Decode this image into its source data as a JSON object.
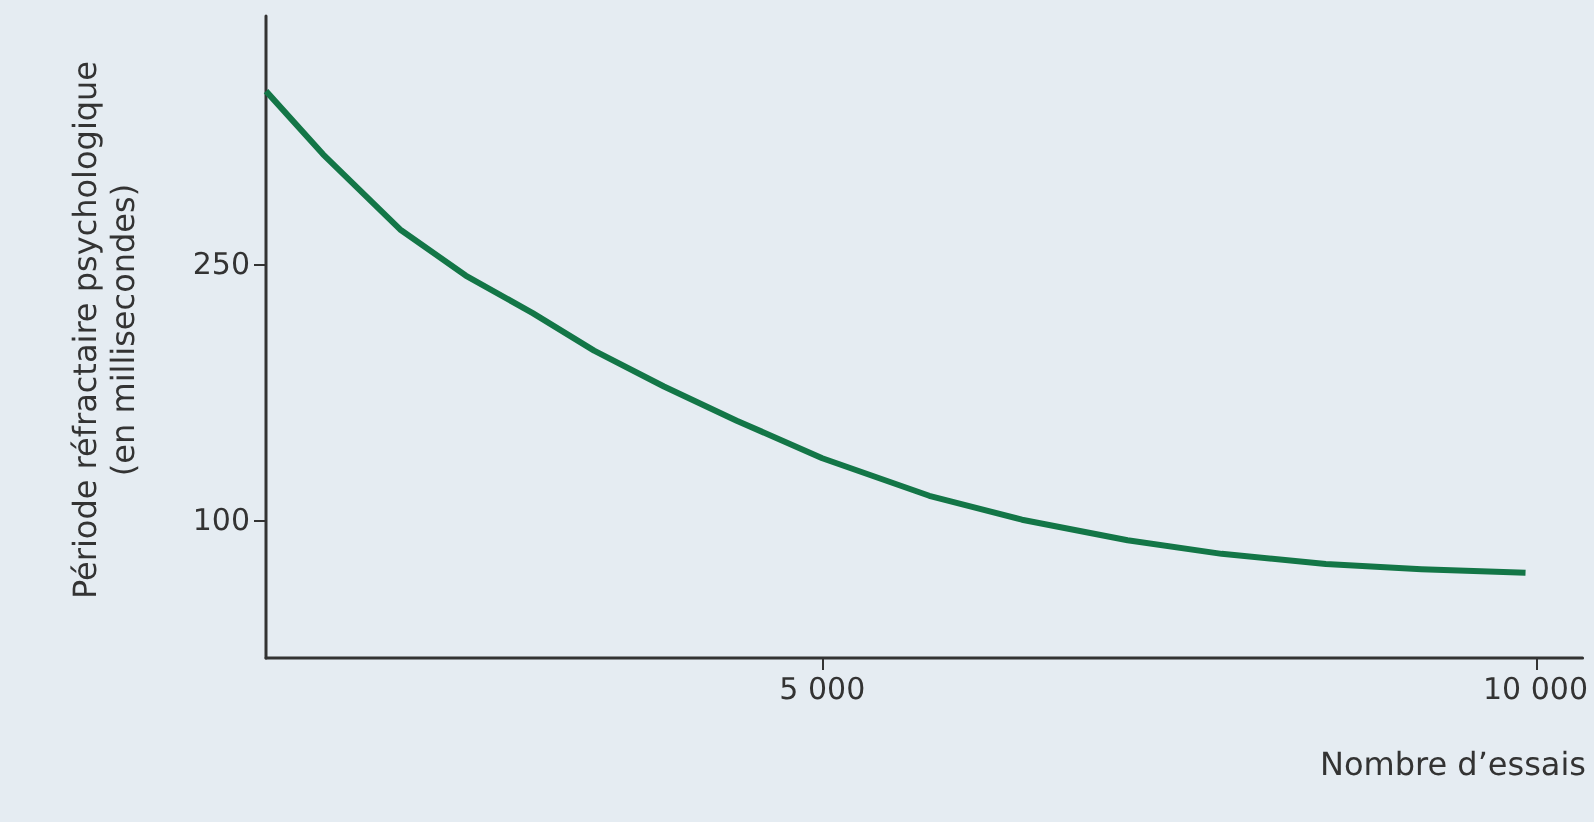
{
  "chart_data": {
    "type": "line",
    "xlabel": "Nombre d’essais",
    "ylabel": "Période réfractaire psychologique\n(en millisecondes)",
    "x": [
      1100,
      1500,
      2040,
      2500,
      2970,
      3400,
      3890,
      4400,
      5000,
      5750,
      6400,
      7140,
      7800,
      8530,
      9200,
      9930
    ],
    "series": [
      {
        "color": "#137647",
        "values": [
          351,
          314,
          270,
          243,
          221,
          199,
          178,
          158,
          136,
          114,
          100,
          88,
          80,
          74,
          71,
          69
        ]
      }
    ],
    "xlim": [
      1100,
      10330
    ],
    "xticks": [
      {
        "value": 5000,
        "label": "5 000"
      },
      {
        "value": 10000,
        "label": "10 000"
      }
    ],
    "ylim": [
      19,
      395
    ],
    "yticks": [
      100,
      250
    ],
    "grid": false,
    "marker": "none",
    "line_style": "solid"
  }
}
